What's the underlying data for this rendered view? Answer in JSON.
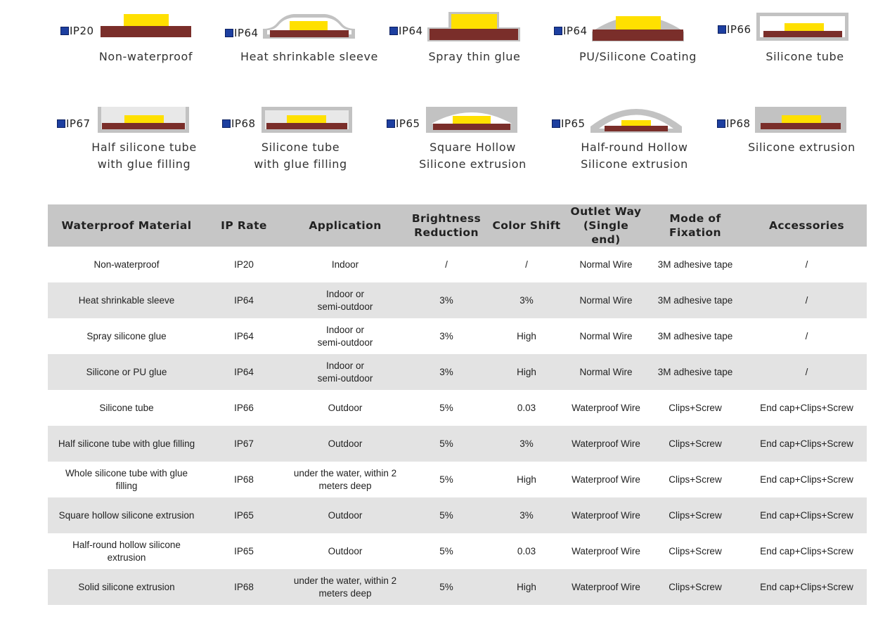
{
  "diagrams": [
    {
      "ip": "IP20",
      "caption": [
        "Non-waterproof"
      ]
    },
    {
      "ip": "IP64",
      "caption": [
        "Heat shrinkable sleeve"
      ]
    },
    {
      "ip": "IP64",
      "caption": [
        "Spray thin glue"
      ]
    },
    {
      "ip": "IP64",
      "caption": [
        "PU/Silicone Coating"
      ]
    },
    {
      "ip": "IP66",
      "caption": [
        "Silicone tube"
      ]
    },
    {
      "ip": "IP67",
      "caption": [
        "Half silicone tube",
        "with glue filling"
      ]
    },
    {
      "ip": "IP68",
      "caption": [
        "Silicone tube",
        "with glue filling"
      ]
    },
    {
      "ip": "IP65",
      "caption": [
        "Square Hollow",
        "Silicone extrusion"
      ]
    },
    {
      "ip": "IP65",
      "caption": [
        "Half-round Hollow",
        "Silicone extrusion"
      ]
    },
    {
      "ip": "IP68",
      "caption": [
        "Silicone extrusion"
      ]
    }
  ],
  "colors": {
    "marker": "#1d3fa0",
    "strip": "#7a2e2a",
    "chip": "#ffe000",
    "silicone": "#c2c2c2",
    "header": "#c6c6c6",
    "stripe": "#e3e3e3"
  },
  "table": {
    "headers": [
      "Waterproof Material",
      "IP Rate",
      "Application",
      "Brightness\nReduction",
      "Color Shift",
      "Outlet Way\n(Single end)",
      "Mode of Fixation",
      "Accessories"
    ],
    "rows": [
      [
        "Non-waterproof",
        "IP20",
        "Indoor",
        "/",
        "/",
        "Normal Wire",
        "3M adhesive tape",
        "/"
      ],
      [
        "Heat shrinkable sleeve",
        "IP64",
        "Indoor or\nsemi-outdoor",
        "3%",
        "3%",
        "Normal Wire",
        "3M adhesive tape",
        "/"
      ],
      [
        "Spray silicone glue",
        "IP64",
        "Indoor or\nsemi-outdoor",
        "3%",
        "High",
        "Normal Wire",
        "3M adhesive tape",
        "/"
      ],
      [
        "Silicone or PU glue",
        "IP64",
        "Indoor or\nsemi-outdoor",
        "3%",
        "High",
        "Normal Wire",
        "3M adhesive tape",
        "/"
      ],
      [
        "Silicone tube",
        "IP66",
        "Outdoor",
        "5%",
        "0.03",
        "Waterproof Wire",
        "Clips+Screw",
        "End cap+Clips+Screw"
      ],
      [
        "Half silicone tube with glue filling",
        "IP67",
        "Outdoor",
        "5%",
        "3%",
        "Waterproof Wire",
        "Clips+Screw",
        "End cap+Clips+Screw"
      ],
      [
        "Whole silicone tube with glue\nfilling",
        "IP68",
        "under the water,  within 2\nmeters deep",
        "5%",
        "High",
        "Waterproof Wire",
        "Clips+Screw",
        "End cap+Clips+Screw"
      ],
      [
        "Square hollow silicone extrusion",
        "IP65",
        "Outdoor",
        "5%",
        "3%",
        "Waterproof Wire",
        "Clips+Screw",
        "End cap+Clips+Screw"
      ],
      [
        "Half-round hollow silicone\nextrusion",
        "IP65",
        "Outdoor",
        "5%",
        "0.03",
        "Waterproof Wire",
        "Clips+Screw",
        "End cap+Clips+Screw"
      ],
      [
        "Solid silicone extrusion",
        "IP68",
        "under the water,  within 2\nmeters deep",
        "5%",
        "High",
        "Waterproof Wire",
        "Clips+Screw",
        "End cap+Clips+Screw"
      ]
    ]
  }
}
